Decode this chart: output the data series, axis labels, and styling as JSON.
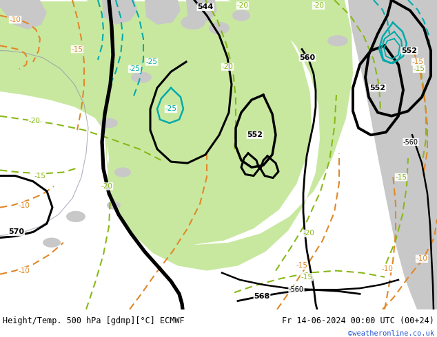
{
  "title_left": "Height/Temp. 500 hPa [gdmp][°C] ECMWF",
  "title_right": "Fr 14-06-2024 00:00 UTC (00+24)",
  "watermark": "©weatheronline.co.uk",
  "bg_color": "#c8c8c8",
  "green_color": "#c8e8a0",
  "black_color": "#000000",
  "teal_color": "#00aaaa",
  "green_temp_color": "#88b818",
  "orange_color": "#e08828",
  "fig_width": 6.34,
  "fig_height": 4.9,
  "dpi": 100
}
